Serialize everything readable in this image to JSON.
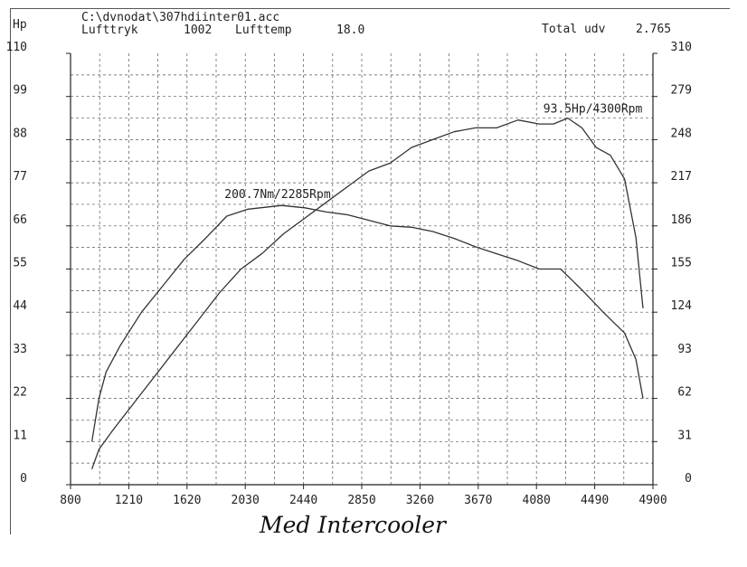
{
  "header": {
    "left_unit": "Hp",
    "file_path": "C:\\dvnodat\\307hdiinter01.acc",
    "pressure_label": "Lufttryk",
    "pressure_value": "1002",
    "temp_label": "Lufttemp",
    "temp_value": "18.0",
    "total_label": "Total udv",
    "total_value": "2.765"
  },
  "caption": "Med Intercooler",
  "chart_data": {
    "type": "line",
    "x_ticks": [
      "800",
      "1210",
      "1620",
      "2030",
      "2440",
      "2850",
      "3260",
      "3670",
      "4080",
      "4490",
      "4900"
    ],
    "y_left_ticks": [
      "0",
      "11",
      "22",
      "33",
      "44",
      "55",
      "66",
      "77",
      "88",
      "99",
      "110"
    ],
    "y_right_ticks": [
      "0",
      "31",
      "62",
      "93",
      "124",
      "155",
      "186",
      "217",
      "248",
      "279",
      "310"
    ],
    "xlim": [
      800,
      4900
    ],
    "y_left_lim": [
      0,
      110
    ],
    "y_right_lim": [
      0,
      310
    ],
    "grid": true,
    "series": [
      {
        "axis": "left",
        "points": [
          [
            950,
            4
          ],
          [
            1000,
            9
          ],
          [
            1100,
            14
          ],
          [
            1250,
            21
          ],
          [
            1400,
            28
          ],
          [
            1550,
            35
          ],
          [
            1700,
            42
          ],
          [
            1850,
            49
          ],
          [
            2000,
            55
          ],
          [
            2150,
            59
          ],
          [
            2300,
            64
          ],
          [
            2450,
            68
          ],
          [
            2600,
            72
          ],
          [
            2750,
            76
          ],
          [
            2900,
            80
          ],
          [
            3050,
            82
          ],
          [
            3200,
            86
          ],
          [
            3350,
            88
          ],
          [
            3500,
            90
          ],
          [
            3650,
            91
          ],
          [
            3800,
            91
          ],
          [
            3950,
            93
          ],
          [
            4100,
            92
          ],
          [
            4200,
            92
          ],
          [
            4300,
            93.5
          ],
          [
            4400,
            91
          ],
          [
            4500,
            86
          ],
          [
            4600,
            84
          ],
          [
            4700,
            78
          ],
          [
            4780,
            63
          ],
          [
            4830,
            45
          ]
        ]
      },
      {
        "axis": "right",
        "points": [
          [
            950,
            31
          ],
          [
            1000,
            62
          ],
          [
            1050,
            81
          ],
          [
            1150,
            100
          ],
          [
            1300,
            124
          ],
          [
            1450,
            143
          ],
          [
            1600,
            162
          ],
          [
            1750,
            177
          ],
          [
            1900,
            193
          ],
          [
            2050,
            198
          ],
          [
            2285,
            200.7
          ],
          [
            2450,
            199
          ],
          [
            2600,
            196
          ],
          [
            2750,
            194
          ],
          [
            2900,
            190
          ],
          [
            3050,
            186
          ],
          [
            3200,
            185
          ],
          [
            3350,
            182
          ],
          [
            3500,
            177
          ],
          [
            3650,
            171
          ],
          [
            3800,
            166
          ],
          [
            3950,
            161
          ],
          [
            4100,
            155
          ],
          [
            4250,
            155
          ],
          [
            4400,
            140
          ],
          [
            4550,
            124
          ],
          [
            4700,
            109
          ],
          [
            4780,
            90
          ],
          [
            4830,
            62
          ]
        ]
      }
    ],
    "annotations": [
      {
        "text": "93.5Hp/4300Rpm",
        "x": 4300,
        "y": 93.5,
        "axis": "left"
      },
      {
        "text": "200.7Nm/2285Rpm",
        "x": 2285,
        "y": 200.7,
        "axis": "right"
      }
    ]
  }
}
